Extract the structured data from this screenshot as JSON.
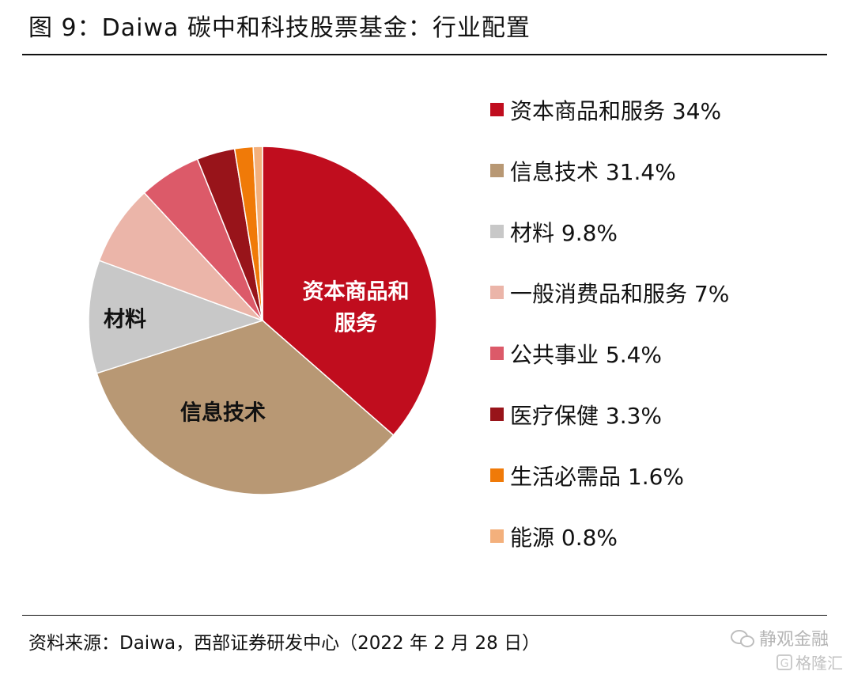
{
  "title": "图 9：Daiwa 碳中和科技股票基金：行业配置",
  "source": "资料来源：Daiwa，西部证券研发中心（2022 年 2 月 28 日）",
  "watermark": {
    "name": "静观金融",
    "site": "格隆汇"
  },
  "chart_data": {
    "type": "pie",
    "start_angle_deg": 0,
    "direction": "clockwise",
    "slices": [
      {
        "name": "资本商品和服务",
        "value": 34.0,
        "legend_label": "资本商品和服务 34%",
        "color": "#C00D1E",
        "label_lines": [
          "资本商品和",
          "服务"
        ],
        "label_color": "#ffffff"
      },
      {
        "name": "信息技术",
        "value": 31.4,
        "legend_label": "信息技术 31.4%",
        "color": "#B89874",
        "label_lines": [
          "信息技术"
        ],
        "label_color": "#111111"
      },
      {
        "name": "材料",
        "value": 9.8,
        "legend_label": "材料 9.8%",
        "color": "#C8C8C8",
        "label_lines": [
          "材料"
        ],
        "label_color": "#111111"
      },
      {
        "name": "一般消费品和服务",
        "value": 7.0,
        "legend_label": "一般消费品和服务 7%",
        "color": "#EBB5A9",
        "label_lines": [],
        "label_color": "#111111"
      },
      {
        "name": "公共事业",
        "value": 5.4,
        "legend_label": "公共事业 5.4%",
        "color": "#DC5A69",
        "label_lines": [],
        "label_color": "#111111"
      },
      {
        "name": "医疗保健",
        "value": 3.3,
        "legend_label": "医疗保健 3.3%",
        "color": "#98141A",
        "label_lines": [],
        "label_color": "#111111"
      },
      {
        "name": "生活必需品",
        "value": 1.6,
        "legend_label": "生活必需品 1.6%",
        "color": "#F07A08",
        "label_lines": [],
        "label_color": "#111111"
      },
      {
        "name": "能源",
        "value": 0.8,
        "legend_label": "能源 0.8%",
        "color": "#F3B07C",
        "label_lines": [],
        "label_color": "#111111"
      }
    ]
  }
}
